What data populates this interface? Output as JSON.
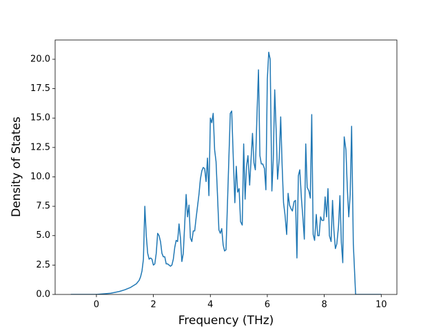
{
  "chart_data": {
    "type": "line",
    "xlabel": "Frequency (THz)",
    "ylabel": "Density of States",
    "xlim": [
      -1.45,
      10.55
    ],
    "ylim": [
      0,
      21.64
    ],
    "xticks": [
      0,
      2,
      4,
      6,
      8,
      10
    ],
    "yticks": [
      {
        "value": 0,
        "label": "0.0"
      },
      {
        "value": 2.5,
        "label": "2.5"
      },
      {
        "value": 5,
        "label": "5.0"
      },
      {
        "value": 7.5,
        "label": "7.5"
      },
      {
        "value": 10,
        "label": "10.0"
      },
      {
        "value": 12.5,
        "label": "12.5"
      },
      {
        "value": 15,
        "label": "15.0"
      },
      {
        "value": 17.5,
        "label": "17.5"
      },
      {
        "value": 20,
        "label": "20.0"
      }
    ],
    "grid": false,
    "series": [
      {
        "color": "#1f77b4",
        "x": [
          -0.9,
          0,
          0.5,
          0.8,
          1.0,
          1.2,
          1.4,
          1.5,
          1.55,
          1.6,
          1.65,
          1.7,
          1.75,
          1.8,
          1.85,
          1.9,
          1.95,
          2.0,
          2.05,
          2.1,
          2.15,
          2.2,
          2.25,
          2.3,
          2.35,
          2.4,
          2.45,
          2.5,
          2.55,
          2.6,
          2.65,
          2.7,
          2.75,
          2.8,
          2.85,
          2.9,
          2.95,
          3.0,
          3.05,
          3.1,
          3.15,
          3.2,
          3.25,
          3.3,
          3.35,
          3.4,
          3.45,
          3.5,
          3.55,
          3.6,
          3.65,
          3.7,
          3.75,
          3.8,
          3.85,
          3.9,
          3.95,
          4.0,
          4.05,
          4.1,
          4.15,
          4.2,
          4.25,
          4.3,
          4.35,
          4.4,
          4.45,
          4.5,
          4.55,
          4.7,
          4.75,
          4.8,
          4.86,
          4.91,
          4.96,
          5.01,
          5.06,
          5.12,
          5.17,
          5.22,
          5.27,
          5.32,
          5.38,
          5.43,
          5.48,
          5.53,
          5.58,
          5.64,
          5.69,
          5.74,
          5.79,
          5.84,
          5.9,
          5.95,
          6.0,
          6.05,
          6.1,
          6.16,
          6.21,
          6.26,
          6.31,
          6.36,
          6.42,
          6.47,
          6.52,
          6.57,
          6.62,
          6.68,
          6.73,
          6.78,
          6.83,
          6.88,
          6.94,
          6.99,
          7.04,
          7.09,
          7.14,
          7.2,
          7.25,
          7.3,
          7.35,
          7.4,
          7.46,
          7.51,
          7.56,
          7.61,
          7.66,
          7.72,
          7.77,
          7.82,
          7.87,
          7.92,
          7.98,
          8.03,
          8.08,
          8.13,
          8.18,
          8.24,
          8.29,
          8.34,
          8.39,
          8.44,
          8.5,
          8.55,
          8.6,
          8.65,
          8.7,
          8.76,
          8.81,
          8.86,
          8.91,
          8.96,
          9.02,
          9.1,
          10
        ],
        "values": [
          0,
          0,
          0.1,
          0.25,
          0.4,
          0.6,
          0.9,
          1.2,
          1.5,
          2.0,
          3.0,
          7.5,
          5.0,
          3.5,
          3.0,
          3.1,
          3.0,
          2.5,
          2.6,
          3.5,
          5.2,
          5.0,
          4.5,
          3.5,
          3.2,
          3.2,
          2.6,
          2.6,
          2.5,
          2.4,
          2.5,
          3.0,
          4.0,
          4.6,
          4.5,
          6.0,
          4.8,
          2.8,
          3.5,
          6.0,
          8.5,
          6.6,
          7.6,
          4.8,
          4.5,
          5.4,
          5.4,
          6.5,
          7.5,
          8.5,
          9.8,
          10.5,
          10.8,
          10.7,
          9.6,
          11.6,
          8.4,
          15.0,
          14.6,
          15.4,
          12.3,
          11.3,
          8.5,
          5.5,
          5.2,
          5.6,
          4.2,
          3.7,
          3.8,
          15.4,
          15.6,
          12.0,
          7.8,
          10.9,
          8.7,
          9.0,
          6.2,
          5.9,
          12.8,
          8.1,
          10.9,
          11.8,
          9.3,
          11.5,
          13.7,
          11.2,
          10.6,
          15.5,
          19.1,
          11.8,
          11.1,
          11.1,
          10.7,
          8.9,
          18.3,
          20.6,
          20.0,
          8.8,
          11.5,
          17.4,
          14.0,
          9.8,
          11.6,
          15.1,
          11.0,
          7.8,
          6.8,
          5.1,
          8.6,
          7.6,
          7.3,
          7.1,
          7.9,
          8.0,
          3.1,
          10.1,
          10.6,
          8.1,
          6.5,
          4.7,
          12.8,
          9.1,
          8.8,
          8.2,
          15.3,
          5.1,
          4.6,
          6.8,
          5.0,
          5.0,
          6.6,
          6.3,
          6.3,
          8.3,
          6.6,
          9.0,
          5.0,
          4.5,
          8.0,
          5.4,
          3.9,
          4.3,
          5.8,
          8.4,
          4.4,
          2.7,
          13.4,
          12.3,
          9.0,
          6.6,
          8.5,
          14.3,
          4.3,
          0,
          0
        ]
      }
    ]
  }
}
